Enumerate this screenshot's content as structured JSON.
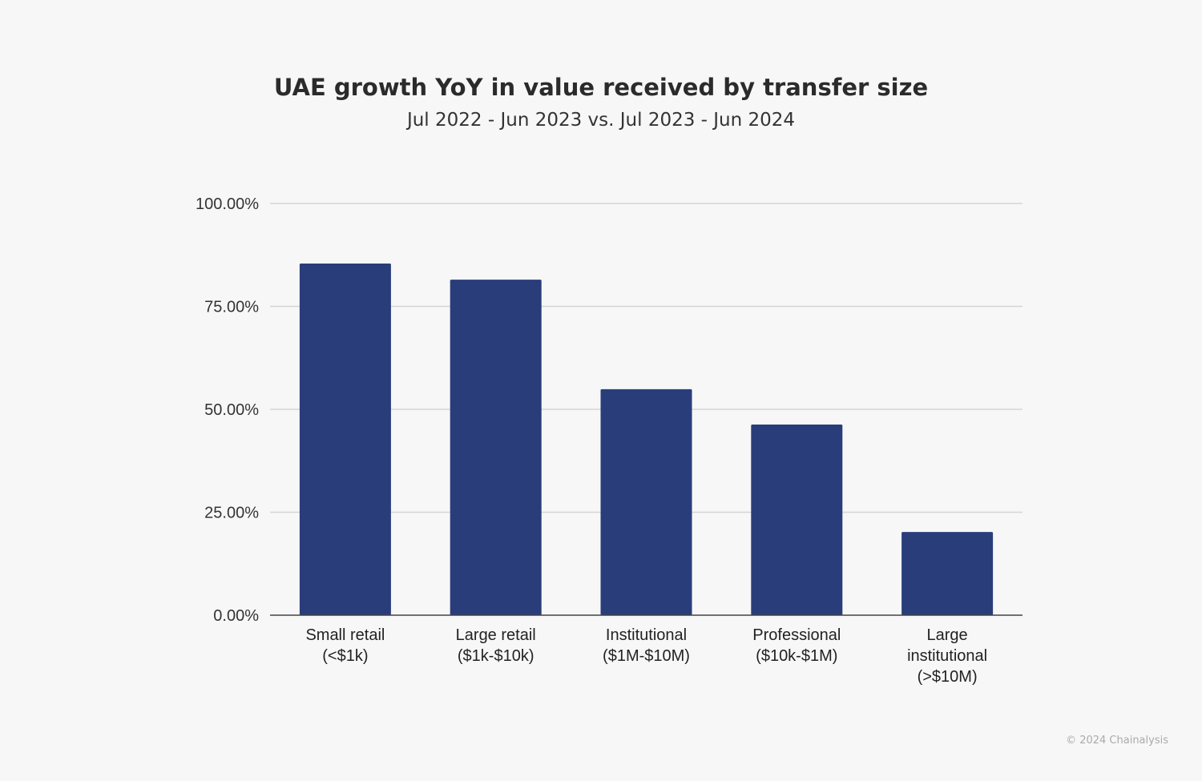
{
  "chart_data": {
    "type": "bar",
    "title": "UAE growth YoY in value received by transfer size",
    "subtitle": "Jul 2022 - Jun 2023 vs. Jul 2023 - Jun 2024",
    "categories": [
      [
        "Small retail",
        "(<$1k)"
      ],
      [
        "Large retail",
        "($1k-$10k)"
      ],
      [
        "Institutional",
        "($1M-$10M)"
      ],
      [
        "Professional",
        "($10k-$1M)"
      ],
      [
        "Large",
        "institutional",
        "(>$10M)"
      ]
    ],
    "values": [
      85.4,
      81.5,
      54.9,
      46.3,
      20.2
    ],
    "ylim": [
      0,
      100
    ],
    "yticks": [
      "0.00%",
      "25.00%",
      "50.00%",
      "75.00%",
      "100.00%"
    ],
    "grid": true,
    "bar_color": "#293d7a",
    "xlabel": "",
    "ylabel": ""
  },
  "footer": "© 2024 Chainalysis"
}
